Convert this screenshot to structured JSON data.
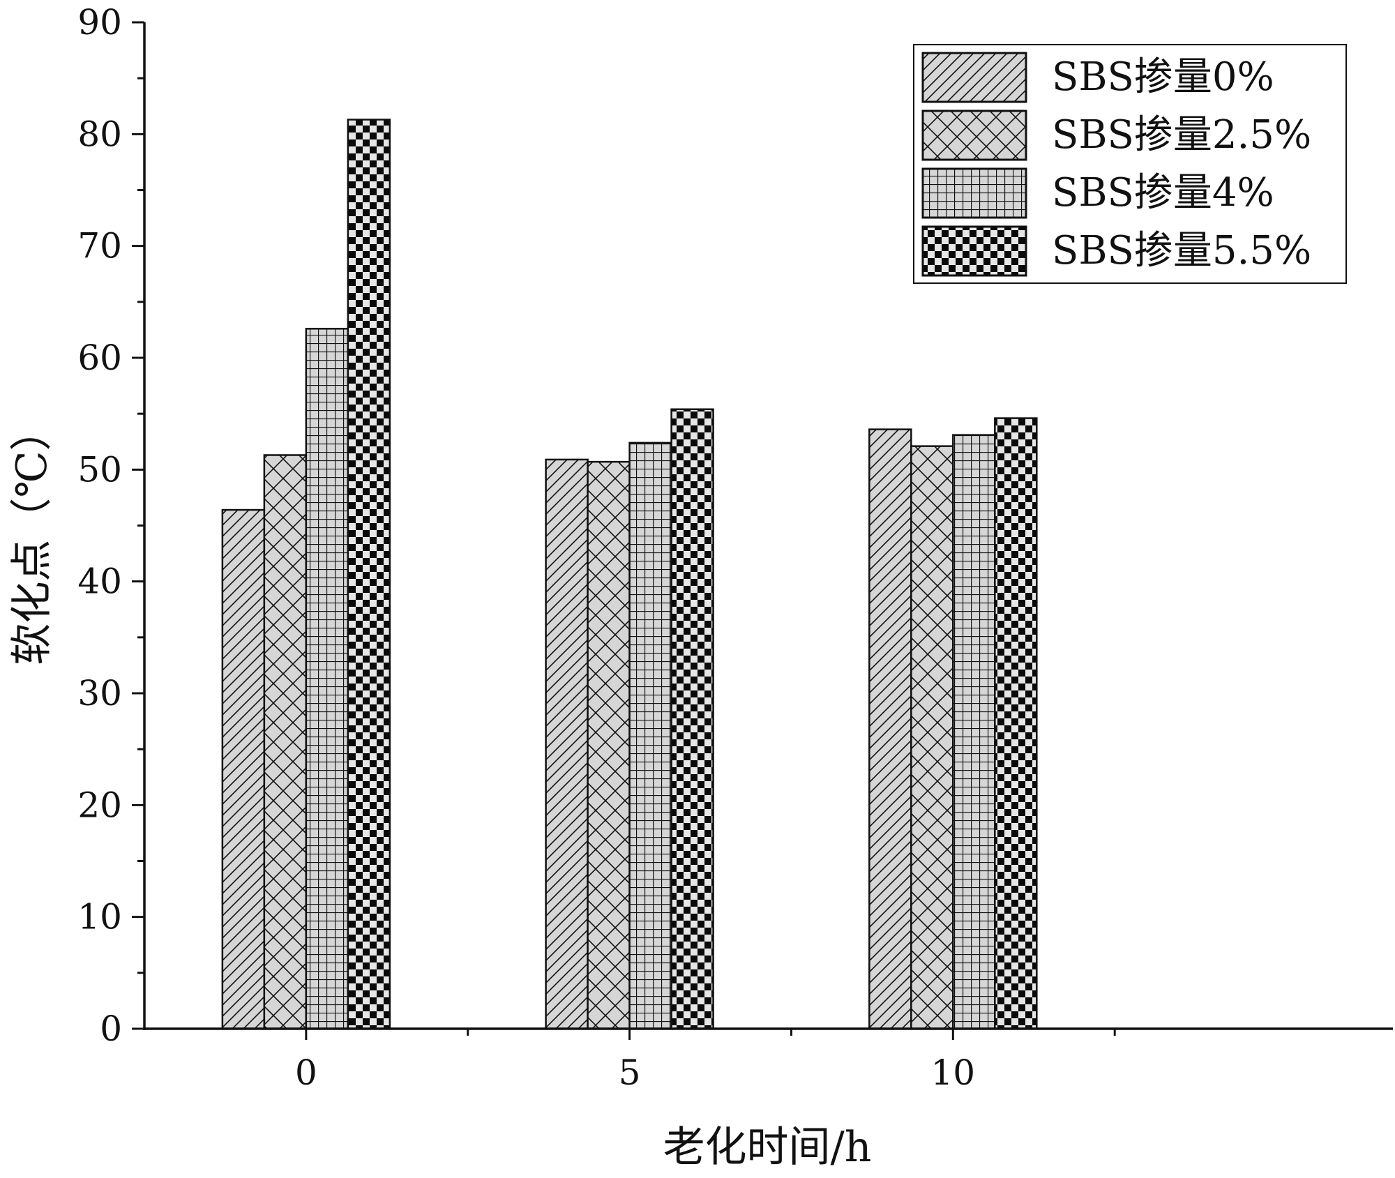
{
  "chart_data": {
    "type": "bar",
    "categories": [
      "0",
      "5",
      "10"
    ],
    "series": [
      {
        "name": "SBS掺量0%",
        "values": [
          46.4,
          50.9,
          53.6
        ],
        "pattern": "diagonal-hatch"
      },
      {
        "name": "SBS掺量2.5%",
        "values": [
          51.3,
          50.7,
          52.1
        ],
        "pattern": "crosshatch"
      },
      {
        "name": "SBS掺量4%",
        "values": [
          62.6,
          52.4,
          53.1
        ],
        "pattern": "grid"
      },
      {
        "name": "SBS掺量5.5%",
        "values": [
          81.3,
          55.4,
          54.6
        ],
        "pattern": "checkerboard"
      }
    ],
    "xlabel": "老化时间/h",
    "ylabel": "软化点（℃）",
    "ylim": [
      0,
      90
    ],
    "yticks": [
      "0",
      "10",
      "20",
      "30",
      "40",
      "50",
      "60",
      "70",
      "80",
      "90"
    ],
    "grid": false,
    "legend_position": "top-right",
    "colors": {
      "bar_fill": "#d6d6d6",
      "pattern_ink": "#111111",
      "axis": "#111111",
      "background": "#ffffff"
    }
  }
}
